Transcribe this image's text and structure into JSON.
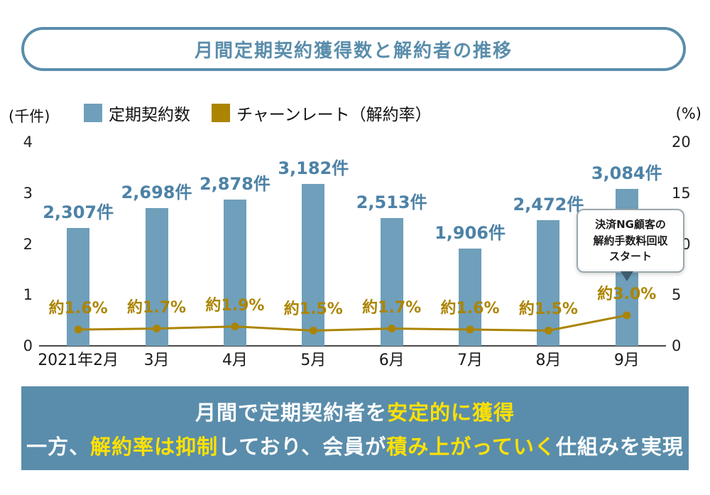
{
  "title": "月間定期契約獲得数と解約者の推移",
  "axes": {
    "left_unit": "(千件)",
    "right_unit": "(%)"
  },
  "chart_data": {
    "type": "bar+line",
    "categories": [
      "2021年2月",
      "3月",
      "4月",
      "5月",
      "6月",
      "7月",
      "8月",
      "9月"
    ],
    "series": [
      {
        "name": "定期契約数",
        "chart": "bar",
        "axis": "left",
        "unit": "件",
        "values": [
          2307,
          2698,
          2878,
          3182,
          2513,
          1906,
          2472,
          3084
        ],
        "labels": [
          "2,307件",
          "2,698件",
          "2,878件",
          "3,182件",
          "2,513件",
          "1,906件",
          "2,472件",
          "3,084件"
        ]
      },
      {
        "name": "チャーンレート（解約率）",
        "chart": "line",
        "axis": "right",
        "unit": "%",
        "values": [
          1.6,
          1.7,
          1.9,
          1.5,
          1.7,
          1.6,
          1.5,
          3.0
        ],
        "labels": [
          "約1.6%",
          "約1.7%",
          "約1.9%",
          "約1.5%",
          "約1.7%",
          "約1.6%",
          "約1.5%",
          "約3.0%"
        ]
      }
    ],
    "left_axis": {
      "label": "(千件)",
      "lim": [
        0,
        4
      ],
      "ticks": [
        0,
        1,
        2,
        3,
        4
      ],
      "scale": "thousands"
    },
    "right_axis": {
      "label": "(%)",
      "lim": [
        0,
        20
      ],
      "ticks": [
        0,
        5,
        10,
        15,
        20
      ]
    },
    "grid": false,
    "legend_position": "top"
  },
  "annotation": {
    "lines": [
      "決済NG顧客の",
      "解約手数料回収",
      "スタート"
    ]
  },
  "footer": {
    "line1": [
      {
        "text": "月間で定期契約者を",
        "highlight": false
      },
      {
        "text": "安定的に獲得",
        "highlight": true
      }
    ],
    "line2": [
      {
        "text": "一方、",
        "highlight": false
      },
      {
        "text": "解約率は抑制",
        "highlight": true
      },
      {
        "text": "しており、会員が",
        "highlight": false
      },
      {
        "text": "積み上がっていく",
        "highlight": true
      },
      {
        "text": "仕組みを実現",
        "highlight": false
      }
    ]
  },
  "colors": {
    "bar": "#6f9fba",
    "gold": "#ab8400",
    "accent": "#5a8dab",
    "bar_value": "#4d82a6",
    "highlight": "#ffe100"
  }
}
